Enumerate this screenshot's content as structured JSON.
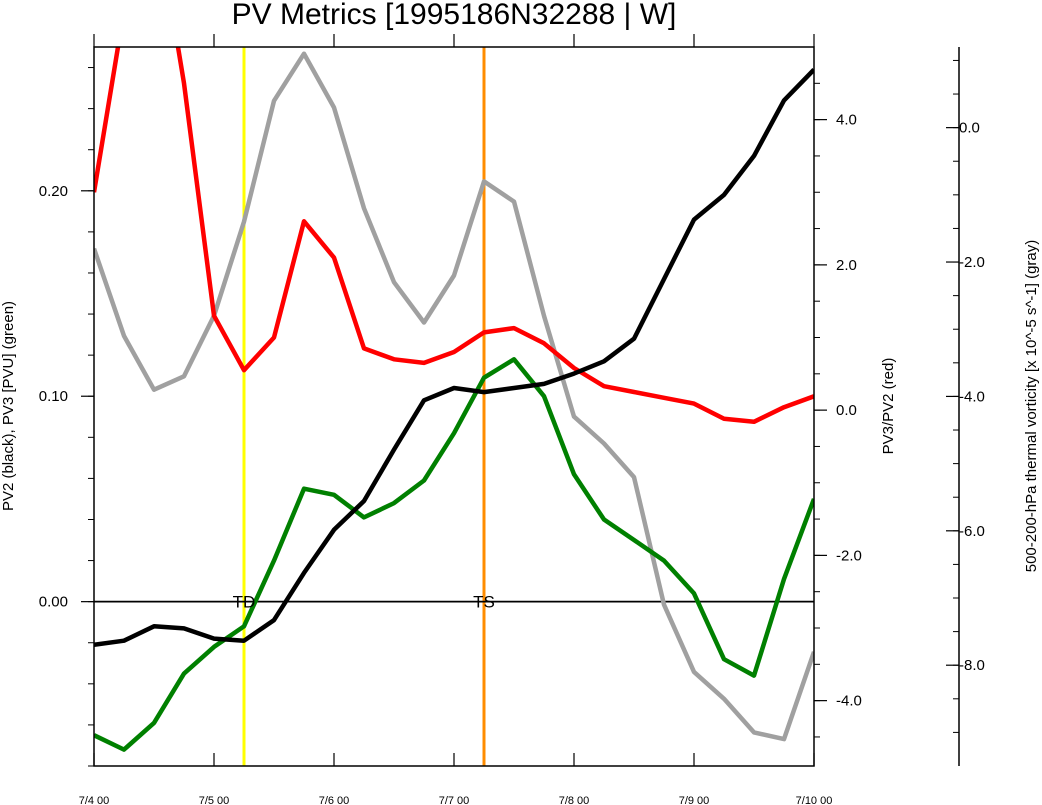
{
  "chart_data": {
    "type": "line",
    "title": "PV Metrics [1995186N32288 | W]",
    "x_ticks": [
      "7/4 00",
      "7/5 00",
      "7/6 00",
      "7/7 00",
      "7/8 00",
      "7/9 00",
      "7/10 00"
    ],
    "xlim": [
      0,
      6
    ],
    "axes": {
      "left": {
        "label": "PV2 (black), PV3 [PVU] (green)",
        "ylim": [
          -0.08,
          0.27
        ],
        "ticks": [
          0.0,
          0.1,
          0.2
        ],
        "tick_labels": [
          "0.00",
          "0.10",
          "0.20"
        ]
      },
      "right": {
        "label": "PV3/PV2 (red)",
        "ylim": [
          -4.9,
          5.0
        ],
        "ticks": [
          -4.0,
          -2.0,
          0.0,
          2.0,
          4.0
        ],
        "tick_labels": [
          "-4.0",
          "-2.0",
          "0.0",
          "2.0",
          "4.0"
        ]
      },
      "right2": {
        "label": "500-200-hPa thermal vorticity [x 10^-5 s^-1] (gray)",
        "ylim": [
          -9.5,
          1.2
        ],
        "ticks": [
          -8.0,
          -6.0,
          -4.0,
          -2.0,
          0.0
        ],
        "tick_labels": [
          "-8.0",
          "-6.0",
          "-4.0",
          "-2.0",
          "0.0"
        ]
      }
    },
    "x": [
      0,
      0.25,
      0.5,
      0.75,
      1.0,
      1.25,
      1.5,
      1.75,
      2.0,
      2.25,
      2.5,
      2.75,
      3.0,
      3.25,
      3.5,
      3.75,
      4.0,
      4.25,
      4.5,
      4.75,
      5.0,
      5.25,
      5.5,
      5.75,
      6.0
    ],
    "series": [
      {
        "axis": "left",
        "color": "#000000",
        "values": [
          -0.021,
          -0.019,
          -0.012,
          -0.013,
          -0.018,
          -0.019,
          -0.009,
          0.014,
          0.035,
          0.049,
          0.074,
          0.098,
          0.104,
          0.102,
          0.104,
          0.106,
          0.111,
          0.117,
          0.128,
          0.157,
          0.186,
          0.198,
          0.217,
          0.244,
          0.259
        ]
      },
      {
        "axis": "left",
        "color": "#008000",
        "values": [
          -0.065,
          -0.072,
          -0.059,
          -0.035,
          -0.022,
          -0.012,
          0.02,
          0.055,
          0.052,
          0.041,
          0.048,
          0.059,
          0.082,
          0.109,
          0.118,
          0.1,
          0.062,
          0.04,
          0.03,
          0.02,
          0.004,
          -0.028,
          -0.036,
          0.011,
          0.05
        ]
      },
      {
        "axis": "right",
        "color": "#ff0000",
        "values": [
          3.0,
          5.5,
          7.0,
          4.5,
          1.3,
          0.55,
          1.0,
          2.6,
          2.1,
          0.85,
          0.7,
          0.65,
          0.8,
          1.07,
          1.13,
          0.92,
          0.58,
          0.33,
          0.25,
          0.17,
          0.09,
          -0.12,
          -0.16,
          0.04,
          0.19
        ]
      },
      {
        "axis": "right2",
        "color": "#a0a0a0",
        "values": [
          -1.8,
          -3.1,
          -3.9,
          -3.7,
          -2.8,
          -1.4,
          0.4,
          1.1,
          0.3,
          -1.2,
          -2.3,
          -2.9,
          -2.2,
          -0.8,
          -1.1,
          -2.8,
          -4.3,
          -4.7,
          -5.2,
          -7.1,
          -8.1,
          -8.5,
          -9.0,
          -9.1,
          -7.8
        ]
      }
    ],
    "vlines": [
      {
        "x": 1.25,
        "color": "#ffff00"
      },
      {
        "x": 3.25,
        "color": "#ff8c00"
      }
    ],
    "hline": {
      "axis": "left",
      "y": 0.0,
      "color": "#000000"
    },
    "annotations": [
      {
        "text": "TD",
        "x": 1.25,
        "y": 0.0
      },
      {
        "text": "TS",
        "x": 3.25,
        "y": 0.0
      }
    ]
  }
}
